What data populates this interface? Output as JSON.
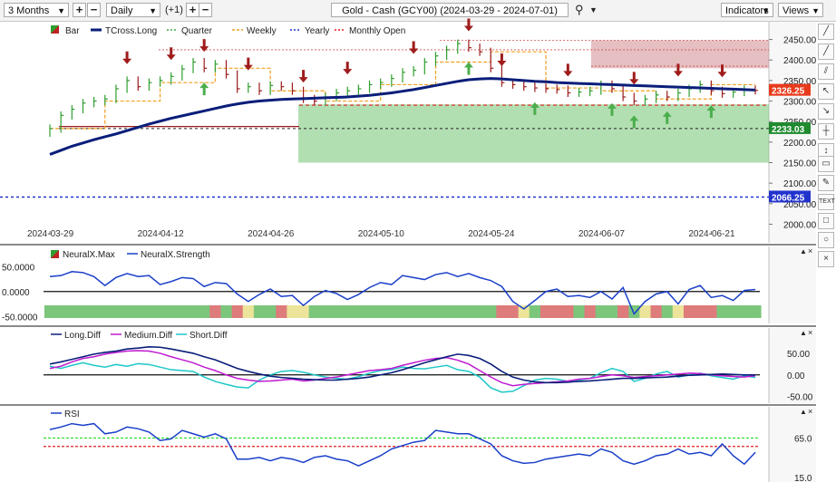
{
  "toolbar": {
    "range": "3 Months",
    "interval": "Daily",
    "plus_one": "(+1)",
    "title": "Gold - Cash (GCY00) (2024-03-29 - 2024-07-01)",
    "indicators": "Indicators",
    "views": "Views"
  },
  "colors": {
    "up": "#2e9e2e",
    "down": "#9b1b1b",
    "tcross": "#0a1e7a",
    "quarter": "#3fa84a",
    "weekly": "#f0a020",
    "yearly": "#2233cc",
    "monthly": "#e02020",
    "strength": "#1a3fc9",
    "long_diff": "#0a1e7a",
    "medium_diff": "#c01ad0",
    "short_diff": "#1fc7c7",
    "rsi": "#1a3fc9"
  },
  "chart_data": [
    {
      "type": "line",
      "panel": "price",
      "legend": [
        "Bar",
        "TCross.Long",
        "Quarter",
        "Weekly",
        "Yearly",
        "Monthly Open"
      ],
      "x_dates": [
        "2024-03-29",
        "2024-04-12",
        "2024-04-26",
        "2024-05-10",
        "2024-05-24",
        "2024-06-07",
        "2024-06-21"
      ],
      "y_ticks": [
        2000.0,
        2050.0,
        2100.0,
        2150.0,
        2200.0,
        2250.0,
        2300.0,
        2350.0,
        2400.0,
        2450.0
      ],
      "ylim": [
        1990,
        2480
      ],
      "levels": {
        "last": "2326.25",
        "quarter": "2233.03",
        "yearly": "2066.25"
      },
      "closes": [
        2233,
        2265,
        2280,
        2295,
        2300,
        2305,
        2330,
        2350,
        2335,
        2345,
        2350,
        2360,
        2378,
        2395,
        2380,
        2390,
        2365,
        2330,
        2335,
        2325,
        2338,
        2335,
        2325,
        2305,
        2300,
        2310,
        2320,
        2325,
        2330,
        2340,
        2345,
        2355,
        2370,
        2375,
        2395,
        2410,
        2425,
        2440,
        2430,
        2420,
        2380,
        2345,
        2340,
        2335,
        2332,
        2330,
        2328,
        2320,
        2322,
        2325,
        2340,
        2330,
        2310,
        2300,
        2305,
        2315,
        2310,
        2320,
        2330,
        2340,
        2325,
        2318,
        2322,
        2328,
        2326
      ],
      "tcross": [
        2170,
        2180,
        2190,
        2198,
        2206,
        2213,
        2220,
        2228,
        2236,
        2244,
        2251,
        2258,
        2264,
        2270,
        2276,
        2282,
        2288,
        2293,
        2297,
        2300,
        2302,
        2304,
        2305,
        2306,
        2307,
        2308,
        2309,
        2310,
        2312,
        2314,
        2317,
        2320,
        2324,
        2328,
        2333,
        2338,
        2343,
        2348,
        2352,
        2354,
        2355,
        2354,
        2352,
        2350,
        2348,
        2347,
        2345,
        2344,
        2343,
        2342,
        2341,
        2340,
        2339,
        2338,
        2337,
        2336,
        2335,
        2334,
        2333,
        2332,
        2331,
        2330,
        2329,
        2328,
        2327
      ]
    },
    {
      "type": "line",
      "panel": "neuralx",
      "legend": [
        "NeuralX.Max",
        "NeuralX.Strength"
      ],
      "y_ticks": [
        "50.0000",
        "0.0000",
        "-50.0000"
      ],
      "ylim": [
        -55,
        65
      ],
      "strength": [
        30,
        32,
        40,
        38,
        30,
        12,
        28,
        36,
        30,
        32,
        14,
        20,
        28,
        26,
        10,
        18,
        16,
        -5,
        -20,
        -6,
        5,
        -10,
        -8,
        -28,
        -10,
        2,
        -4,
        -16,
        -6,
        8,
        18,
        14,
        32,
        28,
        24,
        34,
        38,
        30,
        36,
        28,
        22,
        10,
        -20,
        -35,
        -18,
        0,
        5,
        -10,
        -8,
        -12,
        0,
        -15,
        8,
        -45,
        -20,
        -5,
        0,
        -25,
        4,
        12,
        -12,
        -8,
        -18,
        2,
        4
      ],
      "regime": [
        "G",
        "G",
        "G",
        "G",
        "G",
        "G",
        "G",
        "G",
        "G",
        "G",
        "G",
        "G",
        "G",
        "G",
        "G",
        "R",
        "G",
        "R",
        "Y",
        "G",
        "G",
        "R",
        "Y",
        "Y",
        "G",
        "G",
        "G",
        "G",
        "G",
        "G",
        "G",
        "G",
        "G",
        "G",
        "G",
        "G",
        "G",
        "G",
        "G",
        "G",
        "G",
        "R",
        "R",
        "Y",
        "G",
        "R",
        "R",
        "R",
        "G",
        "R",
        "G",
        "G",
        "R",
        "G",
        "Y",
        "R",
        "G",
        "Y",
        "R",
        "R",
        "R",
        "G",
        "G",
        "G",
        "G"
      ]
    },
    {
      "type": "line",
      "panel": "diff",
      "legend": [
        "Long.Diff",
        "Medium.Diff",
        "Short.Diff"
      ],
      "y_ticks": [
        "50.00",
        "0.00",
        "-50.00"
      ],
      "ylim": [
        -55,
        75
      ],
      "long": [
        25,
        30,
        36,
        42,
        48,
        52,
        55,
        60,
        62,
        65,
        64,
        60,
        55,
        50,
        42,
        35,
        25,
        15,
        8,
        2,
        -3,
        -6,
        -8,
        -10,
        -11,
        -12,
        -12,
        -10,
        -8,
        -5,
        0,
        5,
        12,
        20,
        28,
        35,
        42,
        48,
        45,
        38,
        25,
        8,
        -5,
        -12,
        -16,
        -18,
        -18,
        -17,
        -15,
        -14,
        -12,
        -10,
        -8,
        -8,
        -7,
        -6,
        -5,
        -3,
        -1,
        0,
        1,
        2,
        1,
        0,
        0
      ],
      "medium": [
        15,
        20,
        30,
        38,
        42,
        48,
        52,
        55,
        56,
        55,
        50,
        42,
        35,
        28,
        18,
        10,
        0,
        -8,
        -12,
        -15,
        -14,
        -12,
        -10,
        -14,
        -12,
        -8,
        -5,
        0,
        5,
        10,
        12,
        15,
        22,
        28,
        34,
        38,
        40,
        34,
        25,
        10,
        -5,
        -18,
        -25,
        -22,
        -20,
        -18,
        -16,
        -14,
        -10,
        -8,
        -4,
        0,
        -2,
        -6,
        -4,
        -2,
        0,
        2,
        4,
        3,
        0,
        -2,
        -4,
        -5,
        -2
      ],
      "short": [
        20,
        15,
        22,
        28,
        22,
        18,
        24,
        20,
        26,
        24,
        18,
        12,
        10,
        8,
        -5,
        -15,
        -22,
        -28,
        -30,
        -12,
        0,
        8,
        10,
        6,
        0,
        -5,
        -8,
        -10,
        -4,
        4,
        10,
        12,
        18,
        15,
        14,
        18,
        22,
        12,
        8,
        -5,
        -30,
        -40,
        -38,
        -25,
        -12,
        -8,
        -10,
        -15,
        -12,
        -8,
        5,
        15,
        8,
        -15,
        -8,
        2,
        8,
        -5,
        0,
        4,
        -2,
        -6,
        -10,
        -2,
        -6
      ]
    },
    {
      "type": "line",
      "panel": "rsi",
      "legend": [
        "RSI"
      ],
      "y_ticks": [
        "65.0",
        "15.0"
      ],
      "ylim": [
        15,
        88
      ],
      "hlines": [
        {
          "value": 65,
          "color": "#22dd22"
        },
        {
          "value": 55,
          "color": "#e02020"
        }
      ],
      "rsi": [
        75,
        78,
        82,
        80,
        82,
        70,
        72,
        78,
        76,
        72,
        62,
        64,
        74,
        70,
        66,
        70,
        64,
        40,
        40,
        42,
        38,
        42,
        40,
        36,
        42,
        44,
        40,
        38,
        32,
        38,
        44,
        52,
        56,
        60,
        62,
        74,
        72,
        70,
        70,
        64,
        58,
        44,
        38,
        35,
        36,
        40,
        42,
        44,
        46,
        44,
        52,
        48,
        38,
        34,
        38,
        44,
        46,
        52,
        46,
        48,
        44,
        58,
        44,
        34,
        48
      ]
    }
  ]
}
